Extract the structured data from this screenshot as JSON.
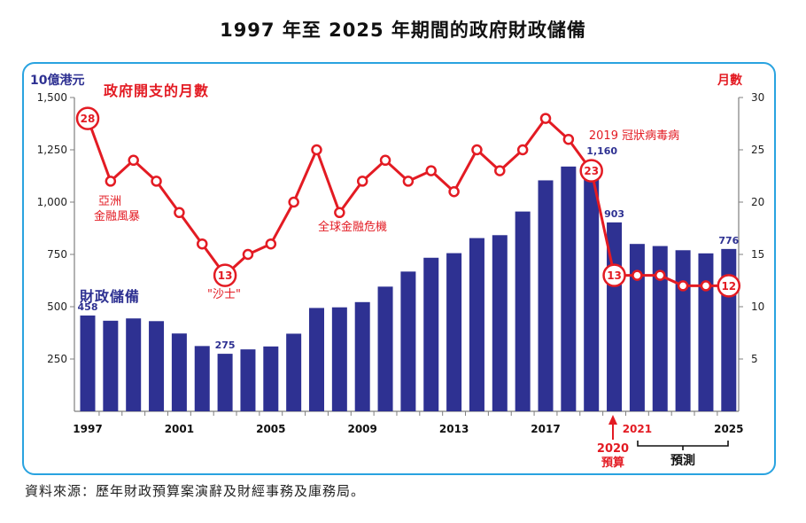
{
  "title": "1997 年至 2025 年期間的政府財政儲備",
  "source_note": "資料來源：歷年財政預算案演辭及財經事務及庫務局。",
  "colors": {
    "bar": "#2e3192",
    "line": "#e31b23",
    "frame": "#29a3e0",
    "axis": "#7f7f7f"
  },
  "chart_data": {
    "type": "bar+line",
    "left_axis": {
      "unit_label": "10億港元",
      "range": [
        0,
        1500
      ],
      "ticks": [
        250,
        500,
        750,
        1000,
        1250,
        1500
      ],
      "tick_labels": [
        "250",
        "500",
        "750",
        "1,000",
        "1,250",
        "1,500"
      ]
    },
    "right_axis": {
      "unit_label": "月數",
      "range": [
        0,
        30
      ],
      "ticks": [
        5,
        10,
        15,
        20,
        25,
        30
      ],
      "tick_labels": [
        "5",
        "10",
        "15",
        "20",
        "25",
        "30"
      ]
    },
    "years": [
      1997,
      1998,
      1999,
      2000,
      2001,
      2002,
      2003,
      2004,
      2005,
      2006,
      2007,
      2008,
      2009,
      2010,
      2011,
      2012,
      2013,
      2014,
      2015,
      2016,
      2017,
      2018,
      2019,
      2020,
      2021,
      2022,
      2023,
      2024,
      2025
    ],
    "x_tick_labels": [
      {
        "year": 1997,
        "label": "1997",
        "color": "#111111"
      },
      {
        "year": 2001,
        "label": "2001",
        "color": "#111111"
      },
      {
        "year": 2005,
        "label": "2005",
        "color": "#111111"
      },
      {
        "year": 2009,
        "label": "2009",
        "color": "#111111"
      },
      {
        "year": 2013,
        "label": "2013",
        "color": "#111111"
      },
      {
        "year": 2017,
        "label": "2017",
        "color": "#111111"
      },
      {
        "year": 2021,
        "label": "2021",
        "color": "#e31b23"
      },
      {
        "year": 2025,
        "label": "2025",
        "color": "#111111"
      }
    ],
    "series": [
      {
        "name": "財政儲備",
        "type": "bar",
        "axis": "left",
        "values": [
          458,
          433,
          444,
          431,
          372,
          312,
          275,
          296,
          310,
          371,
          494,
          497,
          522,
          596,
          668,
          734,
          756,
          828,
          842,
          955,
          1104,
          1170,
          1160,
          903,
          800,
          790,
          770,
          755,
          776
        ]
      },
      {
        "name": "政府開支的月數",
        "type": "line",
        "axis": "right",
        "values": [
          28,
          22,
          24,
          22,
          19,
          16,
          13,
          15,
          16,
          20,
          25,
          19,
          22,
          24,
          22,
          23,
          21,
          25,
          23,
          25,
          28,
          26,
          23,
          13,
          13,
          13,
          12,
          12,
          12
        ]
      }
    ],
    "bar_value_labels": [
      {
        "year": 1997,
        "text": "458"
      },
      {
        "year": 2003,
        "text": "275"
      },
      {
        "year": 2019,
        "text": "1,160"
      },
      {
        "year": 2020,
        "text": "903"
      },
      {
        "year": 2025,
        "text": "776"
      }
    ],
    "highlighted_points": [
      {
        "year": 1997,
        "text": "28"
      },
      {
        "year": 2003,
        "text": "13"
      },
      {
        "year": 2019,
        "text": "23"
      },
      {
        "year": 2020,
        "text": "13"
      },
      {
        "year": 2025,
        "text": "12"
      }
    ],
    "annotations": {
      "asia_crisis": [
        "亞洲",
        "金融風暴"
      ],
      "sars": "\"沙士\"",
      "gfc": "全球金融危機",
      "covid": "2019 冠狀病毒病",
      "budget_2020": [
        "2020",
        "預算"
      ],
      "forecast": "預測"
    }
  }
}
